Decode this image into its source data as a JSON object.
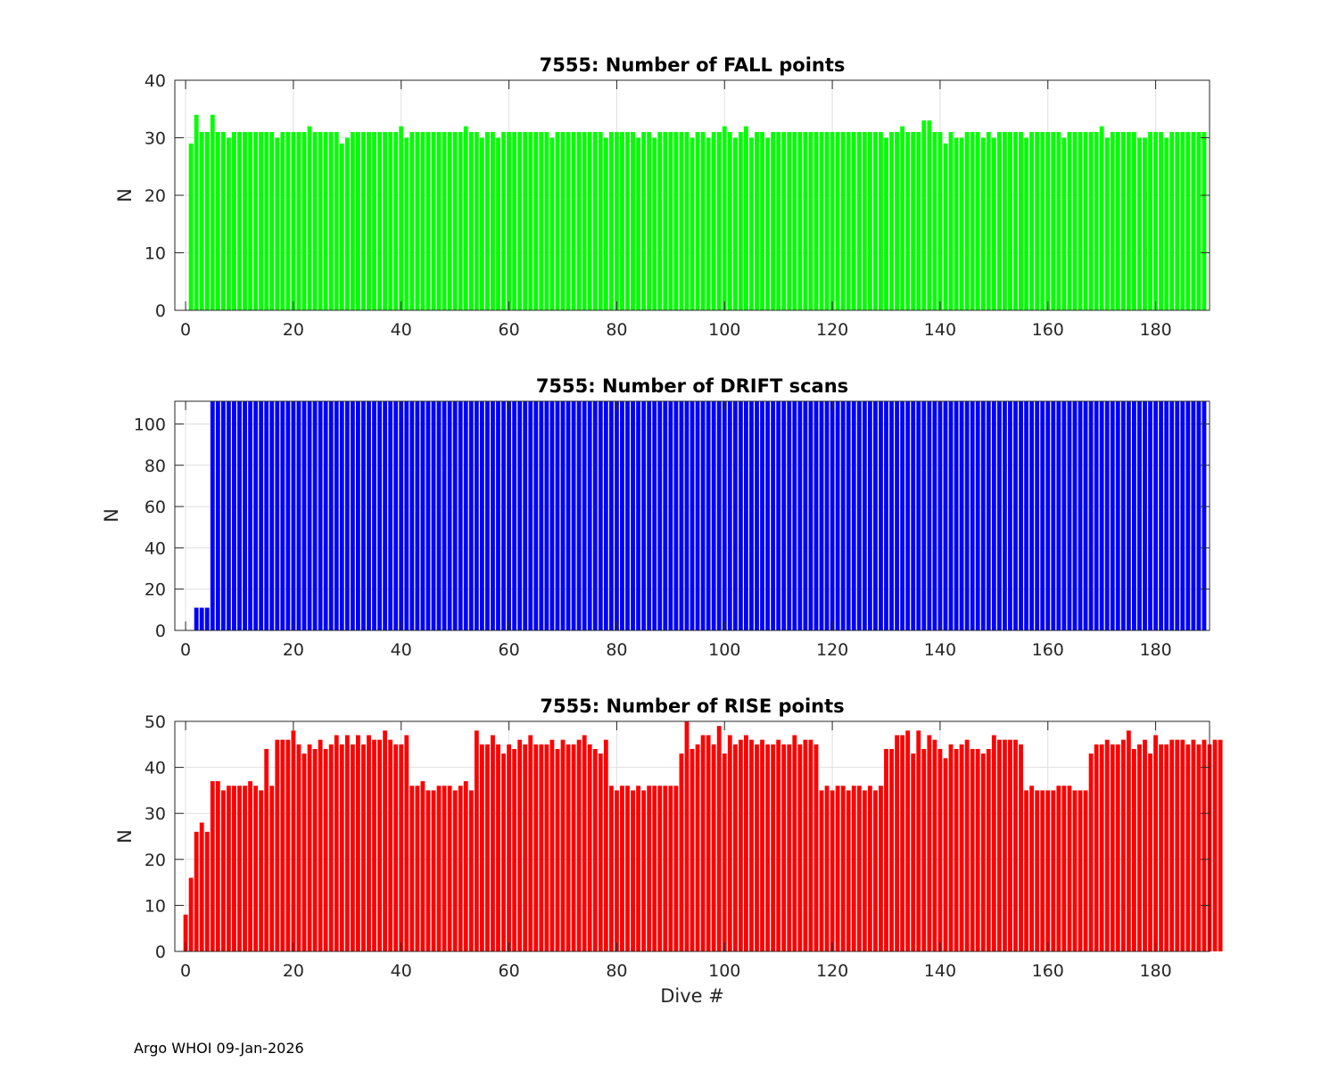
{
  "chart_data": [
    {
      "type": "bar",
      "title": "7555: Number of FALL points",
      "xlabel": "",
      "ylabel": "N",
      "xlim": [
        -2,
        190
      ],
      "ylim": [
        0,
        40
      ],
      "xticks": [
        0,
        20,
        40,
        60,
        80,
        100,
        120,
        140,
        160,
        180
      ],
      "yticks": [
        0,
        10,
        20,
        30,
        40
      ],
      "grid": true,
      "color": "#00ff00",
      "x_start": 1,
      "values": [
        29,
        34,
        31,
        31,
        34,
        31,
        31,
        30,
        31,
        31,
        31,
        31,
        31,
        31,
        31,
        31,
        30,
        31,
        31,
        31,
        31,
        31,
        32,
        31,
        31,
        31,
        31,
        31,
        29,
        30,
        31,
        31,
        31,
        31,
        31,
        31,
        31,
        31,
        31,
        32,
        30,
        31,
        31,
        31,
        31,
        31,
        31,
        31,
        31,
        31,
        31,
        32,
        31,
        31,
        30,
        31,
        31,
        30,
        31,
        31,
        31,
        31,
        31,
        31,
        31,
        31,
        31,
        30,
        31,
        31,
        31,
        31,
        31,
        31,
        31,
        31,
        31,
        30,
        31,
        31,
        31,
        31,
        31,
        30,
        31,
        31,
        30,
        31,
        31,
        31,
        31,
        31,
        31,
        30,
        31,
        31,
        30,
        31,
        31,
        32,
        31,
        30,
        31,
        32,
        30,
        31,
        31,
        30,
        31,
        31,
        31,
        31,
        31,
        31,
        31,
        31,
        31,
        31,
        31,
        31,
        31,
        31,
        31,
        31,
        31,
        31,
        31,
        31,
        31,
        30,
        31,
        31,
        32,
        31,
        31,
        31,
        33,
        33,
        31,
        31,
        29,
        31,
        30,
        30,
        31,
        31,
        31,
        30,
        31,
        30,
        31,
        31,
        31,
        31,
        31,
        30,
        31,
        31,
        31,
        31,
        31,
        31,
        30,
        31,
        31,
        31,
        31,
        31,
        31,
        32,
        30,
        31,
        31,
        31,
        31,
        31,
        30,
        30,
        31,
        31,
        31,
        30,
        31,
        31,
        31,
        31,
        31,
        31,
        31
      ]
    },
    {
      "type": "bar",
      "title": "7555: Number of DRIFT scans",
      "xlabel": "",
      "ylabel": "N",
      "xlim": [
        -2,
        190
      ],
      "ylim": [
        0,
        111
      ],
      "xticks": [
        0,
        20,
        40,
        60,
        80,
        100,
        120,
        140,
        160,
        180
      ],
      "yticks": [
        0,
        20,
        40,
        60,
        80,
        100
      ],
      "grid": true,
      "color": "#0000ff",
      "x_start": 1,
      "values": [
        0,
        11,
        11,
        11,
        111,
        111,
        111,
        111,
        111,
        111,
        111,
        111,
        111,
        111,
        111,
        111,
        111,
        111,
        111,
        111,
        111,
        111,
        111,
        111,
        111,
        111,
        111,
        111,
        111,
        111,
        111,
        111,
        111,
        111,
        111,
        111,
        111,
        111,
        111,
        111,
        111,
        111,
        111,
        111,
        111,
        111,
        111,
        111,
        111,
        111,
        111,
        111,
        111,
        111,
        111,
        111,
        111,
        111,
        111,
        111,
        111,
        111,
        111,
        111,
        111,
        111,
        111,
        111,
        111,
        111,
        111,
        111,
        111,
        111,
        111,
        111,
        111,
        111,
        111,
        111,
        111,
        111,
        111,
        111,
        111,
        111,
        111,
        111,
        111,
        111,
        111,
        111,
        111,
        111,
        111,
        111,
        111,
        111,
        111,
        111,
        111,
        111,
        111,
        111,
        111,
        111,
        111,
        111,
        111,
        111,
        111,
        111,
        111,
        111,
        111,
        111,
        111,
        111,
        111,
        111,
        111,
        111,
        111,
        111,
        111,
        111,
        111,
        111,
        111,
        111,
        111,
        111,
        111,
        111,
        111,
        111,
        111,
        111,
        111,
        111,
        111,
        111,
        111,
        111,
        111,
        111,
        111,
        111,
        111,
        111,
        111,
        111,
        111,
        111,
        111,
        111,
        111,
        111,
        111,
        111,
        111,
        111,
        111,
        111,
        111,
        111,
        111,
        111,
        111,
        111,
        111,
        111,
        111,
        111,
        111,
        111,
        111,
        111,
        111,
        111,
        111,
        111,
        111,
        111,
        111,
        111,
        111,
        111,
        111
      ]
    },
    {
      "type": "bar",
      "title": "7555: Number of RISE points",
      "xlabel": "Dive #",
      "ylabel": "N",
      "xlim": [
        -2,
        190
      ],
      "ylim": [
        0,
        50
      ],
      "xticks": [
        0,
        20,
        40,
        60,
        80,
        100,
        120,
        140,
        160,
        180
      ],
      "yticks": [
        0,
        10,
        20,
        30,
        40,
        50
      ],
      "grid": true,
      "color": "#ff0000",
      "x_start": 0,
      "values": [
        8,
        16,
        26,
        28,
        26,
        37,
        37,
        35,
        36,
        36,
        36,
        36,
        37,
        36,
        35,
        44,
        36,
        46,
        46,
        46,
        48,
        45,
        43,
        45,
        44,
        46,
        44,
        45,
        47,
        45,
        47,
        45,
        47,
        45,
        47,
        46,
        46,
        48,
        46,
        45,
        45,
        47,
        36,
        36,
        37,
        35,
        35,
        36,
        36,
        36,
        35,
        36,
        37,
        35,
        48,
        45,
        45,
        47,
        45,
        43,
        45,
        44,
        46,
        45,
        47,
        45,
        45,
        45,
        46,
        44,
        46,
        45,
        45,
        46,
        47,
        45,
        44,
        43,
        46,
        36,
        35,
        36,
        36,
        35,
        36,
        35,
        36,
        36,
        36,
        36,
        36,
        36,
        43,
        50,
        44,
        45,
        47,
        47,
        45,
        49,
        43,
        47,
        45,
        46,
        47,
        46,
        45,
        46,
        45,
        45,
        46,
        45,
        45,
        47,
        45,
        46,
        46,
        45,
        35,
        36,
        35,
        36,
        36,
        35,
        36,
        36,
        35,
        36,
        35,
        36,
        44,
        44,
        47,
        47,
        48,
        43,
        48,
        44,
        47,
        46,
        44,
        42,
        45,
        44,
        45,
        46,
        44,
        44,
        43,
        44,
        47,
        46,
        46,
        46,
        46,
        45,
        35,
        36,
        35,
        35,
        35,
        35,
        36,
        36,
        36,
        35,
        35,
        35,
        43,
        45,
        45,
        46,
        45,
        45,
        46,
        48,
        44,
        45,
        46,
        43,
        47,
        45,
        45,
        46,
        46,
        46,
        45,
        46,
        45,
        46,
        45,
        46,
        46
      ]
    }
  ],
  "footer": "Argo WHOI 09-Jan-2026"
}
